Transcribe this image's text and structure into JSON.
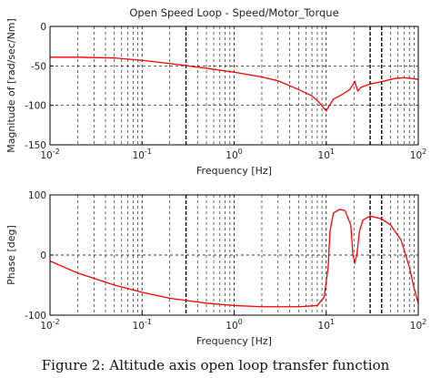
{
  "chart_data": [
    {
      "type": "line",
      "title": "Open Speed Loop - Speed/Motor_Torque",
      "xlabel": "Frequency [Hz]",
      "ylabel": "Magnitude of [rad/sec/Nm]",
      "xscale": "log",
      "xlim": [
        0.01,
        100
      ],
      "ylim": [
        -150,
        0
      ],
      "xticks": [
        0.01,
        0.1,
        1,
        10,
        100
      ],
      "yticks": [
        0,
        -50,
        -100,
        -150
      ],
      "ytick_labels": [
        "0",
        "-50",
        "-100",
        "-150"
      ],
      "grid": true,
      "series": [
        {
          "color": "#ff0000",
          "points": [
            [
              0.01,
              -39
            ],
            [
              0.02,
              -39
            ],
            [
              0.05,
              -40
            ],
            [
              0.1,
              -43
            ],
            [
              0.2,
              -47
            ],
            [
              0.5,
              -53
            ],
            [
              1,
              -58
            ],
            [
              2,
              -64
            ],
            [
              3,
              -69
            ],
            [
              5,
              -80
            ],
            [
              7,
              -88
            ],
            [
              8.5,
              -97
            ],
            [
              9.5,
              -104
            ],
            [
              10,
              -107
            ],
            [
              10.6,
              -102
            ],
            [
              12,
              -92
            ],
            [
              15,
              -86
            ],
            [
              18,
              -80
            ],
            [
              20.5,
              -70
            ],
            [
              22,
              -82
            ],
            [
              24,
              -77
            ],
            [
              30,
              -73
            ],
            [
              40,
              -70
            ],
            [
              55,
              -66
            ],
            [
              70,
              -65
            ],
            [
              85,
              -66
            ],
            [
              100,
              -67
            ]
          ]
        }
      ]
    },
    {
      "type": "line",
      "xlabel": "Frequency [Hz]",
      "ylabel": "Phase [deg]",
      "xscale": "log",
      "xlim": [
        0.01,
        100
      ],
      "ylim": [
        -100,
        100
      ],
      "xticks": [
        0.01,
        0.1,
        1,
        10,
        100
      ],
      "yticks": [
        100,
        0,
        -100
      ],
      "ytick_labels": [
        "100",
        "0",
        "-100"
      ],
      "grid": true,
      "series": [
        {
          "color": "#ff0000",
          "points": [
            [
              0.01,
              -10
            ],
            [
              0.02,
              -30
            ],
            [
              0.05,
              -50
            ],
            [
              0.1,
              -62
            ],
            [
              0.2,
              -72
            ],
            [
              0.5,
              -80
            ],
            [
              1,
              -84
            ],
            [
              2,
              -86
            ],
            [
              5,
              -86
            ],
            [
              8,
              -84
            ],
            [
              9.5,
              -70
            ],
            [
              10.5,
              -20
            ],
            [
              11,
              40
            ],
            [
              12,
              70
            ],
            [
              14,
              76
            ],
            [
              16,
              74
            ],
            [
              18.5,
              50
            ],
            [
              19.5,
              0
            ],
            [
              20.5,
              -12
            ],
            [
              21.5,
              0
            ],
            [
              23,
              40
            ],
            [
              25,
              58
            ],
            [
              30,
              65
            ],
            [
              40,
              60
            ],
            [
              50,
              50
            ],
            [
              65,
              25
            ],
            [
              80,
              -20
            ],
            [
              90,
              -55
            ],
            [
              100,
              -80
            ]
          ]
        }
      ]
    }
  ],
  "xtick_labels": {
    "mantissa": "10",
    "exponents": [
      "-2",
      "-1",
      "0",
      "1",
      "2"
    ]
  },
  "figure": {
    "caption": "Figure 2: Altitude axis open loop transfer function"
  }
}
